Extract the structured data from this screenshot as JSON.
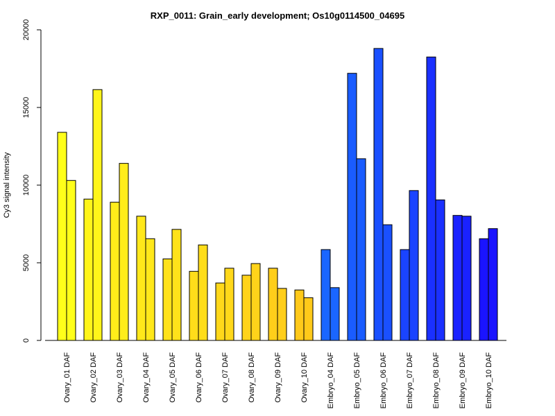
{
  "chart_data": {
    "type": "bar",
    "title": "RXP_0011: Grain_early development; Os10g0114500_04695",
    "ylabel": "Cy3 signal intensity",
    "xlabel": "",
    "ylim": [
      0,
      20000
    ],
    "yticks": [
      0,
      5000,
      10000,
      15000,
      20000
    ],
    "grid": false,
    "categories": [
      "Ovary_01 DAF",
      "Ovary_02 DAF",
      "Ovary_03 DAF",
      "Ovary_04 DAF",
      "Ovary_05 DAF",
      "Ovary_06 DAF",
      "Ovary_07 DAF",
      "Ovary_08 DAF",
      "Ovary_09 DAF",
      "Ovary_10 DAF",
      "Embryo_04 DAF",
      "Embryo_05 DAF",
      "Embryo_06 DAF",
      "Embryo_07 DAF",
      "Embryo_08 DAF",
      "Embryo_09 DAF",
      "Embryo_10 DAF"
    ],
    "groups": [
      {
        "values": [
          13400,
          10300
        ],
        "color": "#ffff1a"
      },
      {
        "values": [
          9100,
          16150
        ],
        "color": "#fff51a"
      },
      {
        "values": [
          8900,
          11400
        ],
        "color": "#ffed1a"
      },
      {
        "values": [
          8000,
          6550
        ],
        "color": "#ffe81a"
      },
      {
        "values": [
          5250,
          7150
        ],
        "color": "#ffe21a"
      },
      {
        "values": [
          4450,
          6150
        ],
        "color": "#ffdd1a"
      },
      {
        "values": [
          3700,
          4650
        ],
        "color": "#ffd81a"
      },
      {
        "values": [
          4200,
          4950
        ],
        "color": "#ffd31a"
      },
      {
        "values": [
          4650,
          3350
        ],
        "color": "#ffce1a"
      },
      {
        "values": [
          3250,
          2750
        ],
        "color": "#ffc91a"
      },
      {
        "values": [
          5850,
          3400
        ],
        "color": "#1a66ff"
      },
      {
        "values": [
          17200,
          11700
        ],
        "color": "#1a5cff"
      },
      {
        "values": [
          18800,
          7450
        ],
        "color": "#1a50ff"
      },
      {
        "values": [
          5850,
          9650
        ],
        "color": "#1a44ff"
      },
      {
        "values": [
          18250,
          9050
        ],
        "color": "#1a30ff"
      },
      {
        "values": [
          8050,
          8000
        ],
        "color": "#1a22ff"
      },
      {
        "values": [
          6550,
          7200
        ],
        "color": "#1a14ff"
      }
    ]
  }
}
